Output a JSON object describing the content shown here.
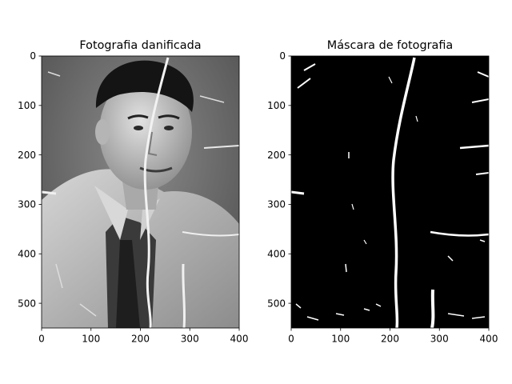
{
  "figure": {
    "background": "#ffffff"
  },
  "chart_data": [
    {
      "type": "image",
      "title": "Fotografia danificada",
      "content": "grayscale photograph",
      "xlim": [
        0,
        400
      ],
      "ylim": [
        550,
        0
      ],
      "xticks": [
        0,
        100,
        200,
        300,
        400
      ],
      "yticks": [
        0,
        100,
        200,
        300,
        400,
        500
      ],
      "xtick_labels": [
        "0",
        "100",
        "200",
        "300",
        "400"
      ],
      "ytick_labels": [
        "0",
        "100",
        "200",
        "300",
        "400",
        "500"
      ],
      "grid": false,
      "colors": {
        "background": "#6f6f6f",
        "face": "#c9c9c9",
        "hair": "#141414",
        "jacket": "#bdbdbd",
        "shirt": "#3a3a3a",
        "damage": "#f2f2f2"
      }
    },
    {
      "type": "image",
      "title": "Máscara de fotografia",
      "content": "binary mask",
      "xlim": [
        0,
        400
      ],
      "ylim": [
        550,
        0
      ],
      "xticks": [
        0,
        100,
        200,
        300,
        400
      ],
      "yticks": [
        0,
        100,
        200,
        300,
        400,
        500
      ],
      "xtick_labels": [
        "0",
        "100",
        "200",
        "300",
        "400"
      ],
      "ytick_labels": [
        "0",
        "100",
        "200",
        "300",
        "400",
        "500"
      ],
      "grid": false,
      "colors": {
        "background": "#000000",
        "mask": "#ffffff"
      }
    }
  ]
}
